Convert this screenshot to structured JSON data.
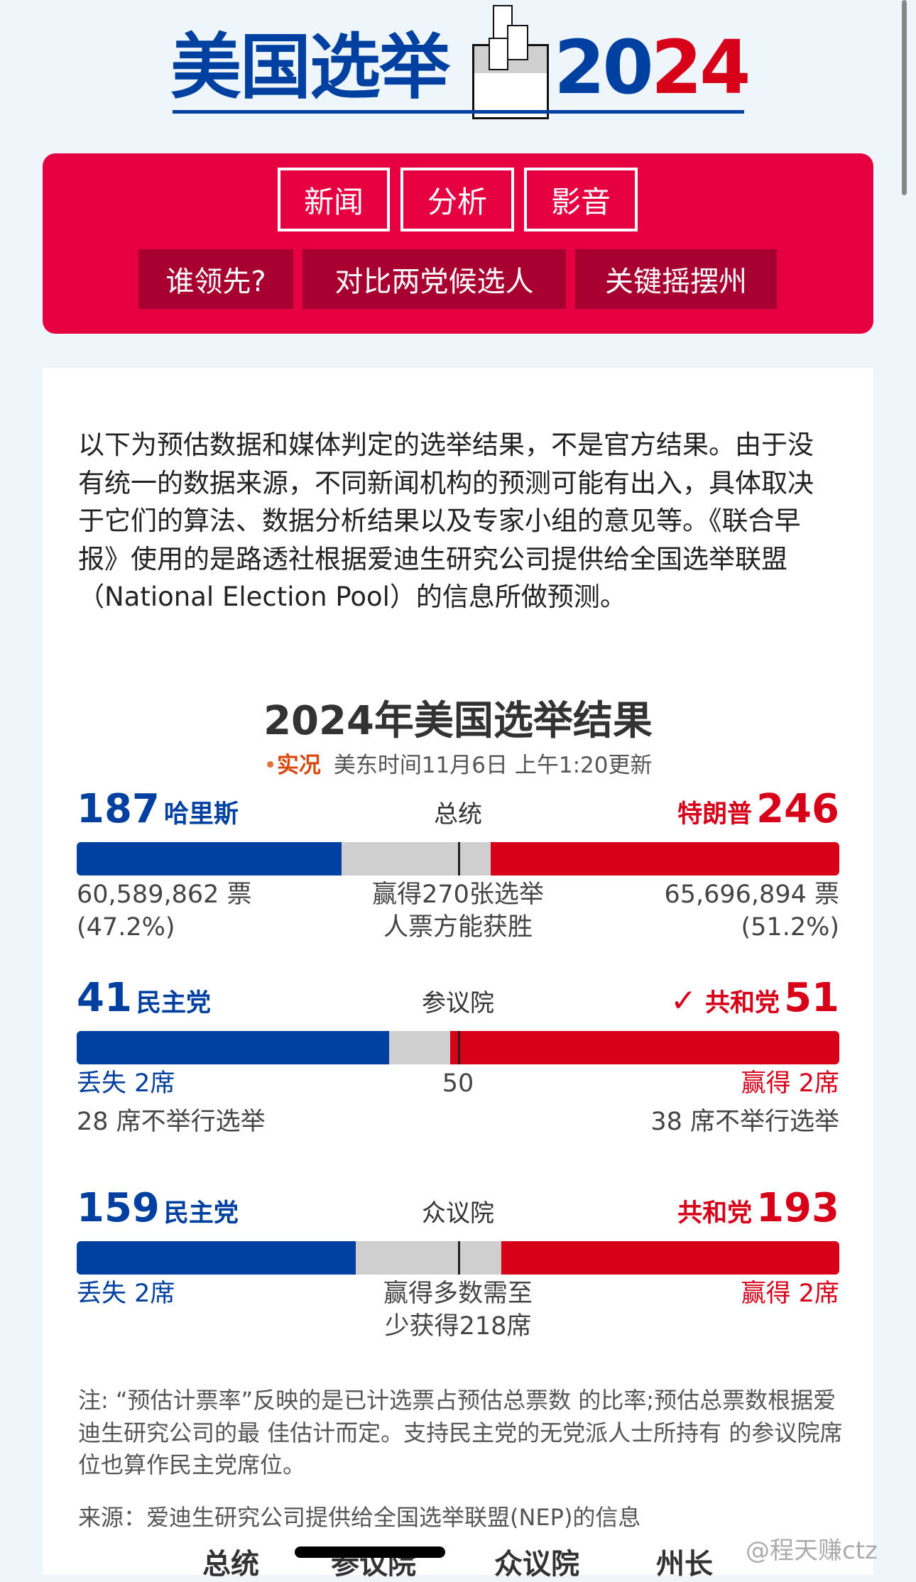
{
  "logo": {
    "text": "美国选举",
    "year_a": "20",
    "year_b": "24"
  },
  "nav": {
    "row1": [
      "新闻",
      "分析",
      "影音"
    ],
    "row2": [
      "谁领先?",
      "对比两党候选人",
      "关键摇摆州"
    ]
  },
  "intro": "以下为预估数据和媒体判定的选举结果，不是官方结果。由于没有统一的数据来源，不同新闻机构的预测可能有出入，具体取决于它们的算法、数据分析结果以及专家小组的意见等。《联合早报》使用的是路透社根据爱迪生研究公司提供给全国选举联盟（National Election Pool）的信息所做预测。",
  "title": "2024年美国选举结果",
  "live": {
    "dot": "•",
    "label": "实况",
    "time": "美东时间11月6日 上午1:20更新"
  },
  "colors": {
    "dem": "#0040a0",
    "rep": "#d80018",
    "nav": "#e60042",
    "nav_dark": "#a80030"
  },
  "president": {
    "dem_num": "187",
    "dem_name": "哈里斯",
    "center": "总统",
    "rep_name": "特朗普",
    "rep_num": "246",
    "total": 538,
    "dem_votes": "60,589,862 票",
    "dem_pct": "(47.2%)",
    "rep_votes": "65,696,894 票",
    "rep_pct": "(51.2%)",
    "center_note_1": "赢得270张选举",
    "center_note_2": "人票方能获胜"
  },
  "senate": {
    "dem_num": "41",
    "dem_name": "民主党",
    "center": "参议院",
    "check": "✓",
    "rep_name": "共和党",
    "rep_num": "51",
    "total": 100,
    "dem_change": "丢失 2席",
    "center_mark": "50",
    "rep_change": "赢得 2席",
    "dem_noelect": "28 席不举行选举",
    "rep_noelect": "38 席不举行选举"
  },
  "house": {
    "dem_num": "159",
    "dem_name": "民主党",
    "center": "众议院",
    "rep_name": "共和党",
    "rep_num": "193",
    "total": 435,
    "dem_change": "丢失 2席",
    "rep_change": "赢得 2席",
    "center_note_1": "赢得多数需至",
    "center_note_2": "少获得218席"
  },
  "note": "注: “预估计票率”反映的是已计选票占预估总票数 的比率;预估总票数根据爱迪生研究公司的最 佳估计而定。支持民主党的无党派人士所持有 的参议院席位也算作民主党席位。",
  "source": "来源：爱迪生研究公司提供给全国选举联盟(NEP)的信息",
  "bottom_tabs": [
    "总统",
    "参议院",
    "众议院",
    "州长"
  ],
  "watermark": "@程天赚ctz"
}
